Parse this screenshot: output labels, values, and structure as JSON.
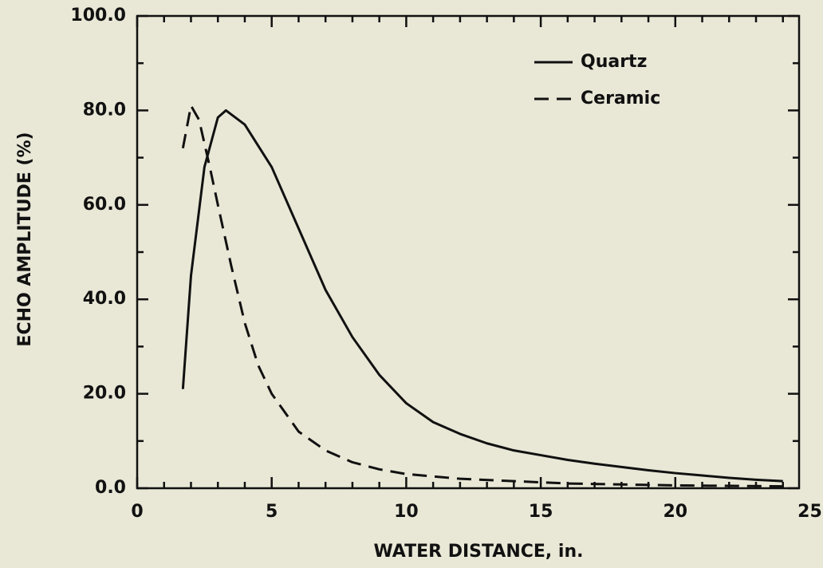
{
  "chart_data": {
    "type": "line",
    "xlabel": "WATER DISTANCE, in.",
    "ylabel": "ECHO AMPLITUDE (%)",
    "xlim": [
      0,
      24.6
    ],
    "ylim": [
      0,
      100
    ],
    "xticks": [
      0,
      5,
      10,
      15,
      20,
      25
    ],
    "xminorticks": [
      1,
      2,
      3,
      4,
      6,
      7,
      8,
      9,
      11,
      12,
      13,
      14,
      16,
      17,
      18,
      19,
      21,
      22,
      23,
      24
    ],
    "yticks": [
      {
        "value": 0,
        "label": "0.0"
      },
      {
        "value": 20,
        "label": "20.0"
      },
      {
        "value": 40,
        "label": "40.0"
      },
      {
        "value": 60,
        "label": "60.0"
      },
      {
        "value": 80,
        "label": "80.0"
      },
      {
        "value": 100,
        "label": "100.0"
      }
    ],
    "yminorticks": [
      10,
      30,
      50,
      70,
      90
    ],
    "legend": "upper right",
    "series": [
      {
        "name": "Quartz",
        "color": "#111111",
        "dash": "solid",
        "x": [
          1.7,
          2.0,
          2.5,
          3.0,
          3.3,
          4,
          5,
          6,
          7,
          8,
          9,
          10,
          11,
          12,
          13,
          14,
          15,
          16,
          17,
          18,
          19,
          20,
          21,
          22,
          23,
          24
        ],
        "values": [
          21,
          45,
          68,
          78.5,
          80,
          77,
          68,
          55,
          42,
          32,
          24,
          18,
          14,
          11.5,
          9.5,
          8,
          7,
          6,
          5.2,
          4.5,
          3.8,
          3.2,
          2.7,
          2.2,
          1.8,
          1.5
        ]
      },
      {
        "name": "Ceramic",
        "color": "#111111",
        "dash": "dashed",
        "x": [
          1.7,
          2.0,
          2.3,
          2.7,
          3.0,
          3.5,
          4,
          4.5,
          5,
          6,
          7,
          8,
          9,
          10,
          12,
          14,
          16,
          18,
          20,
          22,
          24
        ],
        "values": [
          72,
          81,
          78,
          68,
          60,
          47,
          35,
          26,
          20,
          12,
          8,
          5.5,
          4,
          3,
          2,
          1.5,
          1,
          0.8,
          0.6,
          0.5,
          0.4
        ]
      }
    ]
  }
}
